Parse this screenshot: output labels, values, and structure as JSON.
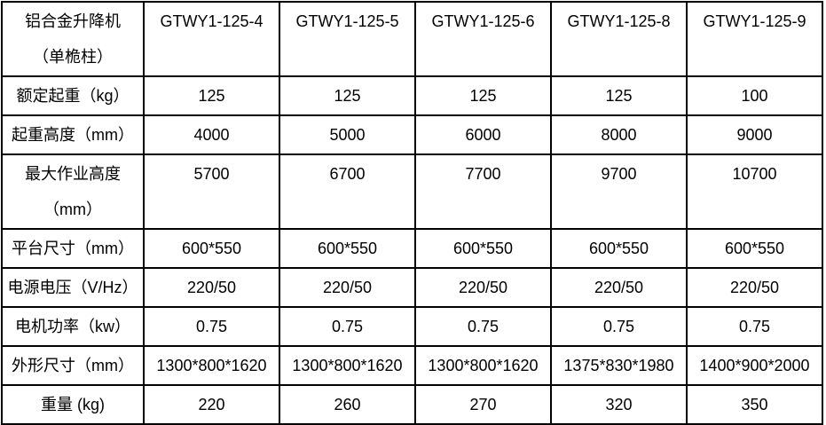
{
  "table": {
    "corner_label": "铝合金升降机\n（单桅柱）",
    "models": [
      "GTWY1-125-4",
      "GTWY1-125-5",
      "GTWY1-125-6",
      "GTWY1-125-8",
      "GTWY1-125-9"
    ],
    "rows": [
      {
        "label": "额定起重（kg）",
        "values": [
          "125",
          "125",
          "125",
          "125",
          "100"
        ]
      },
      {
        "label": "起重高度（mm）",
        "values": [
          "4000",
          "5000",
          "6000",
          "8000",
          "9000"
        ]
      },
      {
        "label": "最大作业高度\n（mm）",
        "values": [
          "5700",
          "6700",
          "7700",
          "9700",
          "10700"
        ]
      },
      {
        "label": "平台尺寸（mm）",
        "values": [
          "600*550",
          "600*550",
          "600*550",
          "600*550",
          "600*550"
        ]
      },
      {
        "label": "电源电压（V/Hz）",
        "values": [
          "220/50",
          "220/50",
          "220/50",
          "220/50",
          "220/50"
        ]
      },
      {
        "label": "电机功率（kw）",
        "values": [
          "0.75",
          "0.75",
          "0.75",
          "0.75",
          "0.75"
        ]
      },
      {
        "label": "外形尺寸（mm）",
        "values": [
          "1300*800*1620",
          "1300*800*1620",
          "1300*800*1620",
          "1375*830*1980",
          "1400*900*2000"
        ]
      },
      {
        "label": "重量 (kg)",
        "values": [
          "220",
          "260",
          "270",
          "320",
          "350"
        ]
      }
    ],
    "colors": {
      "border": "#000000",
      "text": "#000000",
      "background": "#ffffff"
    }
  }
}
